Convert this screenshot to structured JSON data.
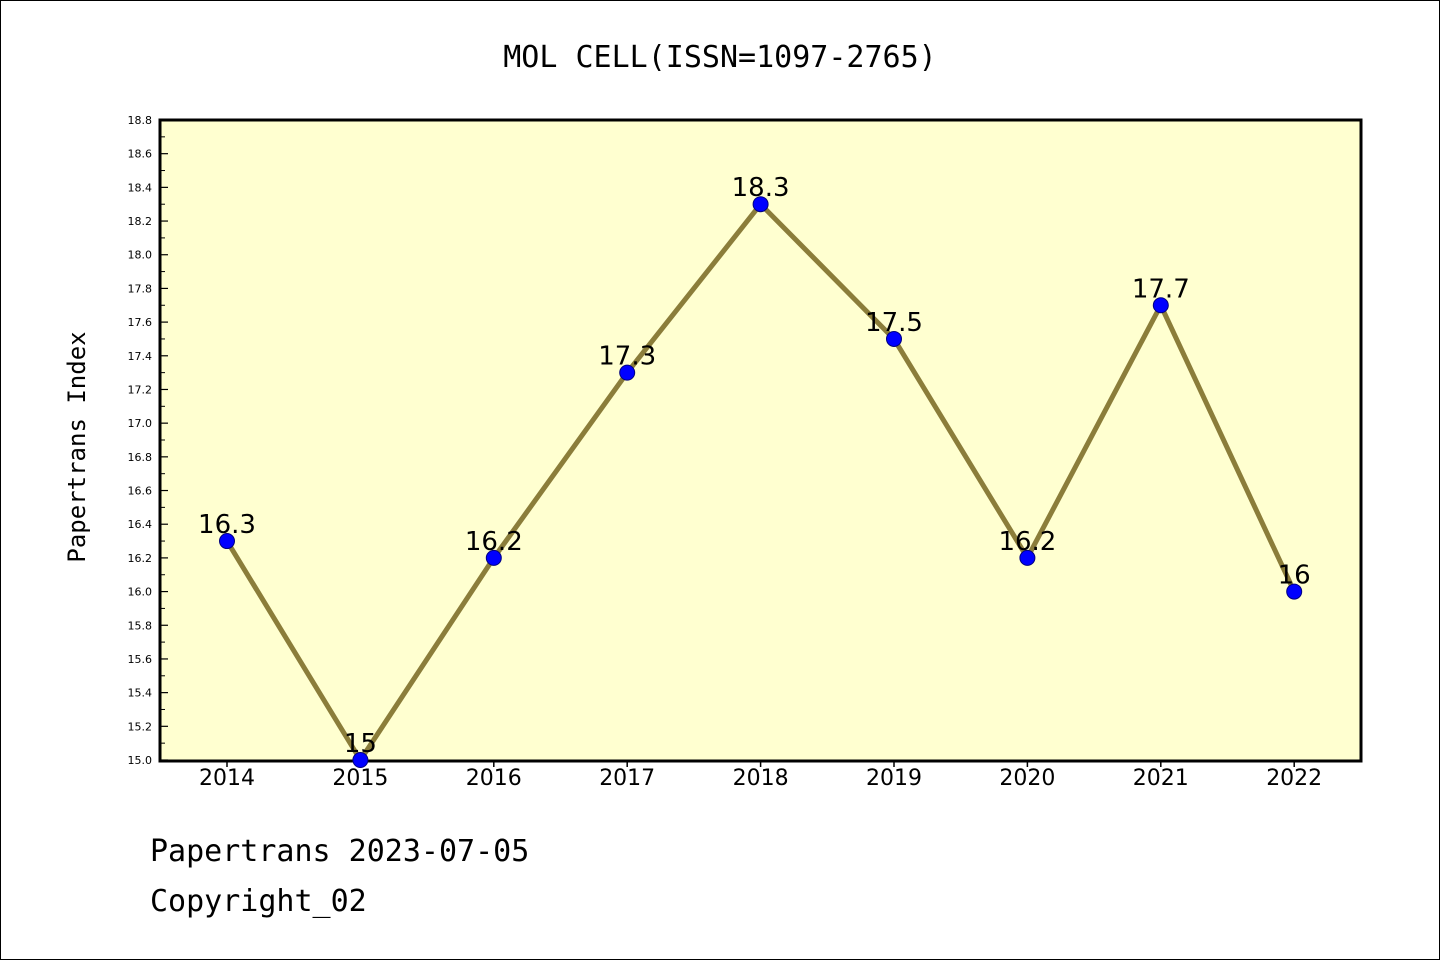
{
  "chart_data": {
    "type": "line",
    "title": "MOL CELL(ISSN=1097-2765)",
    "xlabel": "",
    "ylabel": "Papertrans Index",
    "categories": [
      "2014",
      "2015",
      "2016",
      "2017",
      "2018",
      "2019",
      "2020",
      "2021",
      "2022"
    ],
    "series": [
      {
        "values": [
          16.3,
          15,
          16.2,
          17.3,
          18.3,
          17.5,
          16.2,
          17.7,
          16
        ],
        "labels": [
          "16.3",
          "15",
          "16.2",
          "17.3",
          "18.3",
          "17.5",
          "16.2",
          "17.7",
          "16"
        ]
      }
    ],
    "ylim": [
      15.0,
      18.8
    ],
    "yticks": [
      "15.0",
      "15.2",
      "15.4",
      "15.6",
      "15.8",
      "16.0",
      "16.2",
      "16.4",
      "16.6",
      "16.8",
      "17.0",
      "17.2",
      "17.4",
      "17.6",
      "17.8",
      "18.0",
      "18.2",
      "18.4",
      "18.6",
      "18.8"
    ],
    "grid": false,
    "legend": "none",
    "colors": {
      "plot_background": "#ffffd0",
      "line": "#8b7d3a",
      "marker": "#0000ff"
    }
  },
  "footer": {
    "line1": "Papertrans 2023-07-05",
    "line2": "Copyright_02"
  }
}
